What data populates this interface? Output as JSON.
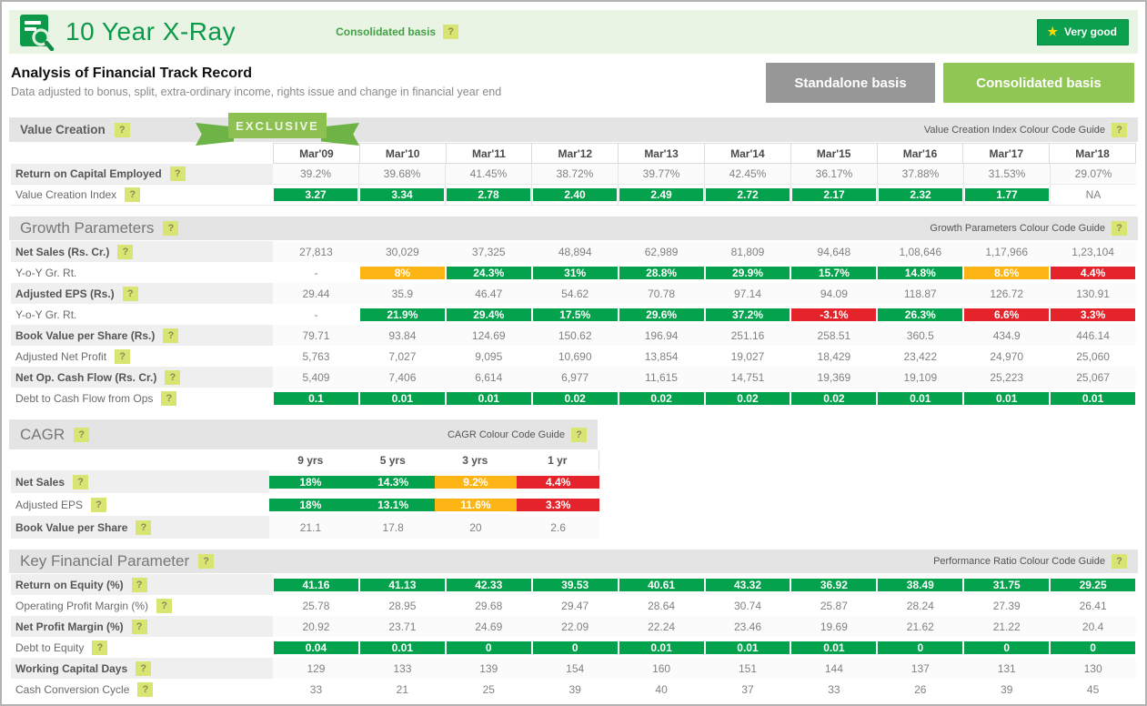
{
  "icons": {
    "help": "?",
    "star": "★"
  },
  "colors": {
    "green": "#04a24c",
    "orange": "#fdb515",
    "red": "#e5232b",
    "brand_green": "#0c9a4a",
    "header_bg": "#e9f4e4",
    "band_bg": "#e4e4e4",
    "button_gray": "#979797",
    "button_green": "#90c653",
    "help_bg": "#d9e573",
    "badge_green": "#0aa04d",
    "star_yellow": "#ffd900"
  },
  "topbar": {
    "title": "10 Year X-Ray",
    "basis_note": "Consolidated basis",
    "rating": "Very good"
  },
  "subheader": {
    "heading": "Analysis of Financial Track Record",
    "subtitle": "Data adjusted to bonus, split, extra-ordinary income, rights issue and change in financial year end",
    "standalone_button": "Standalone basis",
    "consolidated_button": "Consolidated basis"
  },
  "sections": {
    "value_creation": {
      "title": "Value Creation",
      "exclusive_badge": "EXCLUSIVE",
      "guide": "Value Creation Index Colour Code Guide",
      "show_header": true,
      "columns": [
        "Mar'09",
        "Mar'10",
        "Mar'11",
        "Mar'12",
        "Mar'13",
        "Mar'14",
        "Mar'15",
        "Mar'16",
        "Mar'17",
        "Mar'18"
      ],
      "rows": [
        {
          "label": "Return on Capital Employed",
          "help": true,
          "bold": true,
          "cells": [
            {
              "t": "39.2%"
            },
            {
              "t": "39.68%"
            },
            {
              "t": "41.45%"
            },
            {
              "t": "38.72%"
            },
            {
              "t": "39.77%"
            },
            {
              "t": "42.45%"
            },
            {
              "t": "36.17%"
            },
            {
              "t": "37.88%"
            },
            {
              "t": "31.53%"
            },
            {
              "t": "29.07%"
            }
          ]
        },
        {
          "label": "Value Creation Index",
          "help": true,
          "bold": false,
          "cells": [
            {
              "t": "3.27",
              "c": "green"
            },
            {
              "t": "3.34",
              "c": "green"
            },
            {
              "t": "2.78",
              "c": "green"
            },
            {
              "t": "2.40",
              "c": "green"
            },
            {
              "t": "2.49",
              "c": "green"
            },
            {
              "t": "2.72",
              "c": "green"
            },
            {
              "t": "2.17",
              "c": "green"
            },
            {
              "t": "2.32",
              "c": "green"
            },
            {
              "t": "1.77",
              "c": "green"
            },
            {
              "t": "NA"
            }
          ]
        }
      ]
    },
    "growth": {
      "title": "Growth Parameters",
      "guide": "Growth Parameters Colour Code Guide",
      "show_header": false,
      "rows": [
        {
          "label": "Net Sales (Rs. Cr.)",
          "help": true,
          "bold": true,
          "cells": [
            {
              "t": "27,813"
            },
            {
              "t": "30,029"
            },
            {
              "t": "37,325"
            },
            {
              "t": "48,894"
            },
            {
              "t": "62,989"
            },
            {
              "t": "81,809"
            },
            {
              "t": "94,648"
            },
            {
              "t": "1,08,646"
            },
            {
              "t": "1,17,966"
            },
            {
              "t": "1,23,104"
            }
          ]
        },
        {
          "label": "Y-o-Y Gr. Rt.",
          "help": false,
          "bold": false,
          "cells": [
            {
              "t": "-"
            },
            {
              "t": "8%",
              "c": "orange"
            },
            {
              "t": "24.3%",
              "c": "green"
            },
            {
              "t": "31%",
              "c": "green"
            },
            {
              "t": "28.8%",
              "c": "green"
            },
            {
              "t": "29.9%",
              "c": "green"
            },
            {
              "t": "15.7%",
              "c": "green"
            },
            {
              "t": "14.8%",
              "c": "green"
            },
            {
              "t": "8.6%",
              "c": "orange"
            },
            {
              "t": "4.4%",
              "c": "red"
            }
          ]
        },
        {
          "label": "Adjusted EPS (Rs.)",
          "help": true,
          "bold": true,
          "cells": [
            {
              "t": "29.44"
            },
            {
              "t": "35.9"
            },
            {
              "t": "46.47"
            },
            {
              "t": "54.62"
            },
            {
              "t": "70.78"
            },
            {
              "t": "97.14"
            },
            {
              "t": "94.09"
            },
            {
              "t": "118.87"
            },
            {
              "t": "126.72"
            },
            {
              "t": "130.91"
            }
          ]
        },
        {
          "label": "Y-o-Y Gr. Rt.",
          "help": false,
          "bold": false,
          "cells": [
            {
              "t": "-"
            },
            {
              "t": "21.9%",
              "c": "green"
            },
            {
              "t": "29.4%",
              "c": "green"
            },
            {
              "t": "17.5%",
              "c": "green"
            },
            {
              "t": "29.6%",
              "c": "green"
            },
            {
              "t": "37.2%",
              "c": "green"
            },
            {
              "t": "-3.1%",
              "c": "red"
            },
            {
              "t": "26.3%",
              "c": "green"
            },
            {
              "t": "6.6%",
              "c": "red"
            },
            {
              "t": "3.3%",
              "c": "red"
            }
          ]
        },
        {
          "label": "Book Value per Share (Rs.)",
          "help": true,
          "bold": true,
          "cells": [
            {
              "t": "79.71"
            },
            {
              "t": "93.84"
            },
            {
              "t": "124.69"
            },
            {
              "t": "150.62"
            },
            {
              "t": "196.94"
            },
            {
              "t": "251.16"
            },
            {
              "t": "258.51"
            },
            {
              "t": "360.5"
            },
            {
              "t": "434.9"
            },
            {
              "t": "446.14"
            }
          ]
        },
        {
          "label": "Adjusted Net Profit",
          "help": true,
          "bold": false,
          "cells": [
            {
              "t": "5,763"
            },
            {
              "t": "7,027"
            },
            {
              "t": "9,095"
            },
            {
              "t": "10,690"
            },
            {
              "t": "13,854"
            },
            {
              "t": "19,027"
            },
            {
              "t": "18,429"
            },
            {
              "t": "23,422"
            },
            {
              "t": "24,970"
            },
            {
              "t": "25,060"
            }
          ]
        },
        {
          "label": "Net Op. Cash Flow (Rs. Cr.)",
          "help": true,
          "bold": true,
          "cells": [
            {
              "t": "5,409"
            },
            {
              "t": "7,406"
            },
            {
              "t": "6,614"
            },
            {
              "t": "6,977"
            },
            {
              "t": "11,615"
            },
            {
              "t": "14,751"
            },
            {
              "t": "19,369"
            },
            {
              "t": "19,109"
            },
            {
              "t": "25,223"
            },
            {
              "t": "25,067"
            }
          ]
        },
        {
          "label": "Debt to Cash Flow from Ops",
          "help": true,
          "bold": false,
          "cells": [
            {
              "t": "0.1",
              "c": "green"
            },
            {
              "t": "0.01",
              "c": "green"
            },
            {
              "t": "0.01",
              "c": "green"
            },
            {
              "t": "0.02",
              "c": "green"
            },
            {
              "t": "0.02",
              "c": "green"
            },
            {
              "t": "0.02",
              "c": "green"
            },
            {
              "t": "0.02",
              "c": "green"
            },
            {
              "t": "0.01",
              "c": "green"
            },
            {
              "t": "0.01",
              "c": "green"
            },
            {
              "t": "0.01",
              "c": "green"
            }
          ]
        }
      ]
    },
    "cagr": {
      "title": "CAGR",
      "guide": "CAGR Colour Code Guide",
      "show_header": true,
      "columns": [
        "9 yrs",
        "5 yrs",
        "3 yrs",
        "1 yr"
      ],
      "rows": [
        {
          "label": "Net Sales",
          "help": true,
          "bold": true,
          "cells": [
            {
              "t": "18%",
              "c": "green"
            },
            {
              "t": "14.3%",
              "c": "green"
            },
            {
              "t": "9.2%",
              "c": "orange"
            },
            {
              "t": "4.4%",
              "c": "red"
            }
          ]
        },
        {
          "label": "Adjusted EPS",
          "help": true,
          "bold": false,
          "cells": [
            {
              "t": "18%",
              "c": "green"
            },
            {
              "t": "13.1%",
              "c": "green"
            },
            {
              "t": "11.6%",
              "c": "orange"
            },
            {
              "t": "3.3%",
              "c": "red"
            }
          ]
        },
        {
          "label": "Book Value per Share",
          "help": true,
          "bold": true,
          "cells": [
            {
              "t": "21.1"
            },
            {
              "t": "17.8"
            },
            {
              "t": "20"
            },
            {
              "t": "2.6"
            }
          ]
        }
      ]
    },
    "key_financial": {
      "title": "Key Financial Parameter",
      "guide": "Performance Ratio Colour Code Guide",
      "show_header": false,
      "rows": [
        {
          "label": "Return on Equity (%)",
          "help": true,
          "bold": true,
          "cells": [
            {
              "t": "41.16",
              "c": "green"
            },
            {
              "t": "41.13",
              "c": "green"
            },
            {
              "t": "42.33",
              "c": "green"
            },
            {
              "t": "39.53",
              "c": "green"
            },
            {
              "t": "40.61",
              "c": "green"
            },
            {
              "t": "43.32",
              "c": "green"
            },
            {
              "t": "36.92",
              "c": "green"
            },
            {
              "t": "38.49",
              "c": "green"
            },
            {
              "t": "31.75",
              "c": "green"
            },
            {
              "t": "29.25",
              "c": "green"
            }
          ]
        },
        {
          "label": "Operating Profit Margin (%)",
          "help": true,
          "bold": false,
          "cells": [
            {
              "t": "25.78"
            },
            {
              "t": "28.95"
            },
            {
              "t": "29.68"
            },
            {
              "t": "29.47"
            },
            {
              "t": "28.64"
            },
            {
              "t": "30.74"
            },
            {
              "t": "25.87"
            },
            {
              "t": "28.24"
            },
            {
              "t": "27.39"
            },
            {
              "t": "26.41"
            }
          ]
        },
        {
          "label": "Net Profit Margin (%)",
          "help": true,
          "bold": true,
          "cells": [
            {
              "t": "20.92"
            },
            {
              "t": "23.71"
            },
            {
              "t": "24.69"
            },
            {
              "t": "22.09"
            },
            {
              "t": "22.24"
            },
            {
              "t": "23.46"
            },
            {
              "t": "19.69"
            },
            {
              "t": "21.62"
            },
            {
              "t": "21.22"
            },
            {
              "t": "20.4"
            }
          ]
        },
        {
          "label": "Debt to Equity",
          "help": true,
          "bold": false,
          "cells": [
            {
              "t": "0.04",
              "c": "green"
            },
            {
              "t": "0.01",
              "c": "green"
            },
            {
              "t": "0",
              "c": "green"
            },
            {
              "t": "0",
              "c": "green"
            },
            {
              "t": "0.01",
              "c": "green"
            },
            {
              "t": "0.01",
              "c": "green"
            },
            {
              "t": "0.01",
              "c": "green"
            },
            {
              "t": "0",
              "c": "green"
            },
            {
              "t": "0",
              "c": "green"
            },
            {
              "t": "0",
              "c": "green"
            }
          ]
        },
        {
          "label": "Working Capital Days",
          "help": true,
          "bold": true,
          "cells": [
            {
              "t": "129"
            },
            {
              "t": "133"
            },
            {
              "t": "139"
            },
            {
              "t": "154"
            },
            {
              "t": "160"
            },
            {
              "t": "151"
            },
            {
              "t": "144"
            },
            {
              "t": "137"
            },
            {
              "t": "131"
            },
            {
              "t": "130"
            }
          ]
        },
        {
          "label": "Cash Conversion Cycle",
          "help": true,
          "bold": false,
          "cells": [
            {
              "t": "33"
            },
            {
              "t": "21"
            },
            {
              "t": "25"
            },
            {
              "t": "39"
            },
            {
              "t": "40"
            },
            {
              "t": "37"
            },
            {
              "t": "33"
            },
            {
              "t": "26"
            },
            {
              "t": "39"
            },
            {
              "t": "45"
            }
          ]
        }
      ]
    }
  }
}
